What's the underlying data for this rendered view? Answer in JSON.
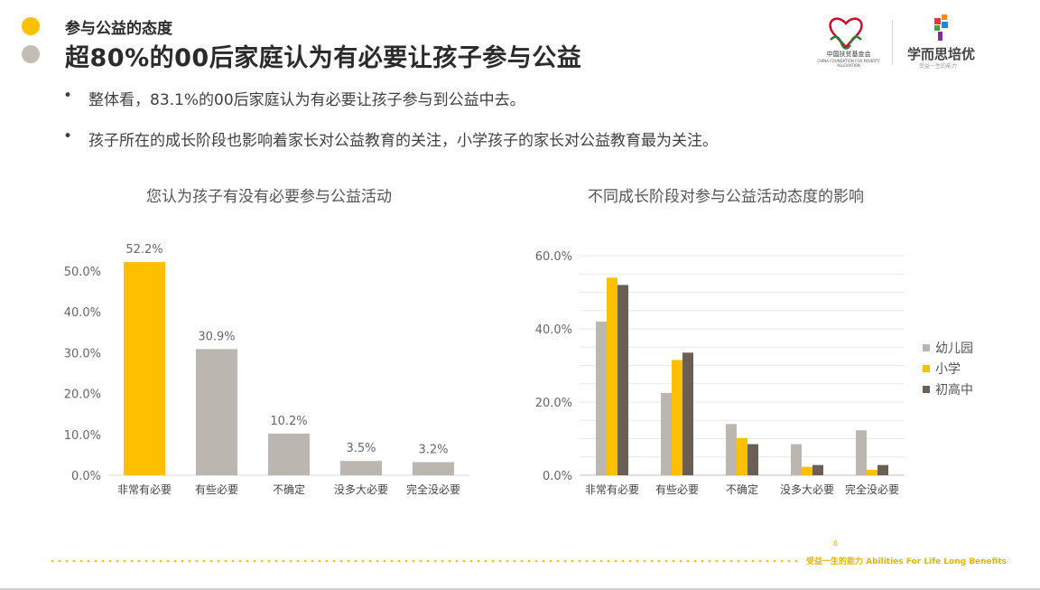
{
  "header": {
    "subtitle": "参与公益的态度",
    "title": "超80%的00后家庭认为有必要让孩子参与公益"
  },
  "logos": {
    "foundation_name": "中国扶贫基金会",
    "foundation_en": "CHINA FOUNDATION FOR POVERTY ALLEVIATION",
    "brand_name": "学而思培优",
    "brand_slogan": "受益一生的能力"
  },
  "bullets": [
    "整体看，83.1%的00后家庭认为有必要让孩子参与到公益中去。",
    "孩子所在的成长阶段也影响着家长对公益教育的关注，小学孩子的家长对公益教育最为关注。"
  ],
  "footer": {
    "page_number": "6",
    "slogan": "受益一生的能力  Abilities For Life Long Benefits"
  },
  "colors": {
    "yellow": "#FDC000",
    "grey": "#BBB6B0",
    "dark": "#6B5E55",
    "kindergarten": "#BBB6B0",
    "primary": "#FDC000",
    "middle_high": "#6B5E55"
  },
  "chart_data": [
    {
      "type": "bar",
      "title": "您认为孩子有没有必要参与公益活动",
      "categories": [
        "非常有必要",
        "有些必要",
        "不确定",
        "没多大必要",
        "完全没必要"
      ],
      "values": [
        52.2,
        30.9,
        10.2,
        3.5,
        3.2
      ],
      "data_labels": [
        "52.2%",
        "30.9%",
        "10.2%",
        "3.5%",
        "3.2%"
      ],
      "highlight_index": 0,
      "ylim": [
        0,
        50
      ],
      "yticks": [
        "0.0%",
        "10.0%",
        "20.0%",
        "30.0%",
        "40.0%",
        "50.0%"
      ],
      "grid": false
    },
    {
      "type": "bar",
      "title": "不同成长阶段对参与公益活动态度的影响",
      "categories": [
        "非常有必要",
        "有些必要",
        "不确定",
        "没多大必要",
        "完全没必要"
      ],
      "series": [
        {
          "name": "幼儿园",
          "values": [
            42.0,
            22.5,
            14.0,
            8.5,
            12.3
          ]
        },
        {
          "name": "小学",
          "values": [
            54.0,
            31.5,
            10.2,
            2.3,
            1.5
          ]
        },
        {
          "name": "初高中",
          "values": [
            52.0,
            33.5,
            8.5,
            2.8,
            2.8
          ]
        }
      ],
      "ylim": [
        0,
        60
      ],
      "yticks": [
        "0.0%",
        "20.0%",
        "40.0%",
        "60.0%"
      ],
      "grid": true,
      "legend_position": "right"
    }
  ]
}
